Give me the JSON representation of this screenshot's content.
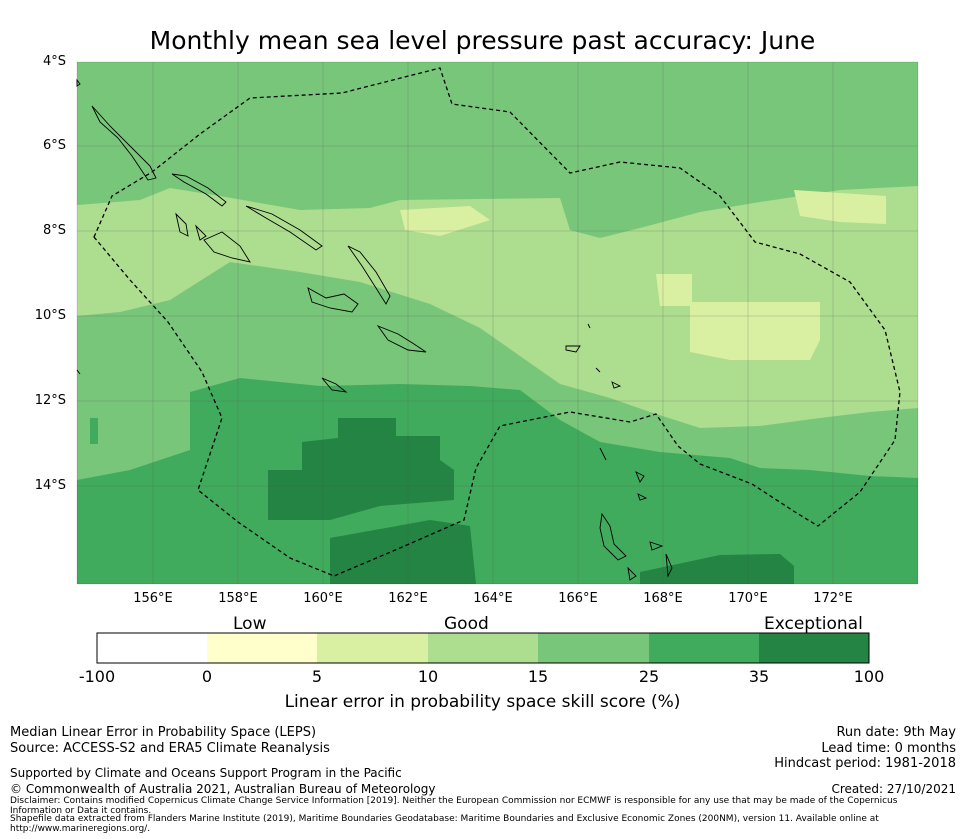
{
  "title": "Monthly mean sea level pressure past accuracy: June",
  "map": {
    "y_ticks": [
      "4°S",
      "6°S",
      "8°S",
      "10°S",
      "12°S",
      "14°S"
    ],
    "x_ticks": [
      "156°E",
      "158°E",
      "160°E",
      "162°E",
      "164°E",
      "166°E",
      "168°E",
      "170°E",
      "172°E"
    ],
    "lon_range": [
      154,
      174.5
    ],
    "lat_range": [
      -16.3,
      -4
    ]
  },
  "colorbar": {
    "categories": [
      "Low",
      "Good",
      "Exceptional"
    ],
    "ticks": [
      "-100",
      "0",
      "5",
      "10",
      "15",
      "25",
      "35",
      "100"
    ],
    "colors": [
      "#ffffff",
      "#ffffcc",
      "#d9f0a3",
      "#addd8e",
      "#78c679",
      "#41ab5d",
      "#238443"
    ],
    "label": "Linear error in probability space skill score (%)"
  },
  "footer": {
    "left1": "Median Linear Error in Probability Space (LEPS)",
    "left2": "Source: ACCESS-S2 and ERA5 Climate Reanalysis",
    "left3": "Supported by Climate and Oceans Support Program in the Pacific",
    "left4": "© Commonwealth of Australia 2021, Australian Bureau of Meteorology",
    "run_date": "Run date: 9th May",
    "lead_time": "Lead time: 0 months",
    "hindcast": "Hindcast period: 1981-2018",
    "created": "Created: 27/10/2021",
    "disclaimer": "Disclaimer: Contains modified Copernicus Climate Change Service Information [2019]. Neither the European Commission nor ECMWF is responsible for any use that may be made of the Copernicus Information or Data it contains.",
    "shapefile": "Shapefile data extracted from Flanders Marine Institute (2019), Maritime Boundaries Geodatabase: Maritime Boundaries and Exclusive Economic Zones (200NM), version 11. Available online at http://www.marineregions.org/."
  }
}
